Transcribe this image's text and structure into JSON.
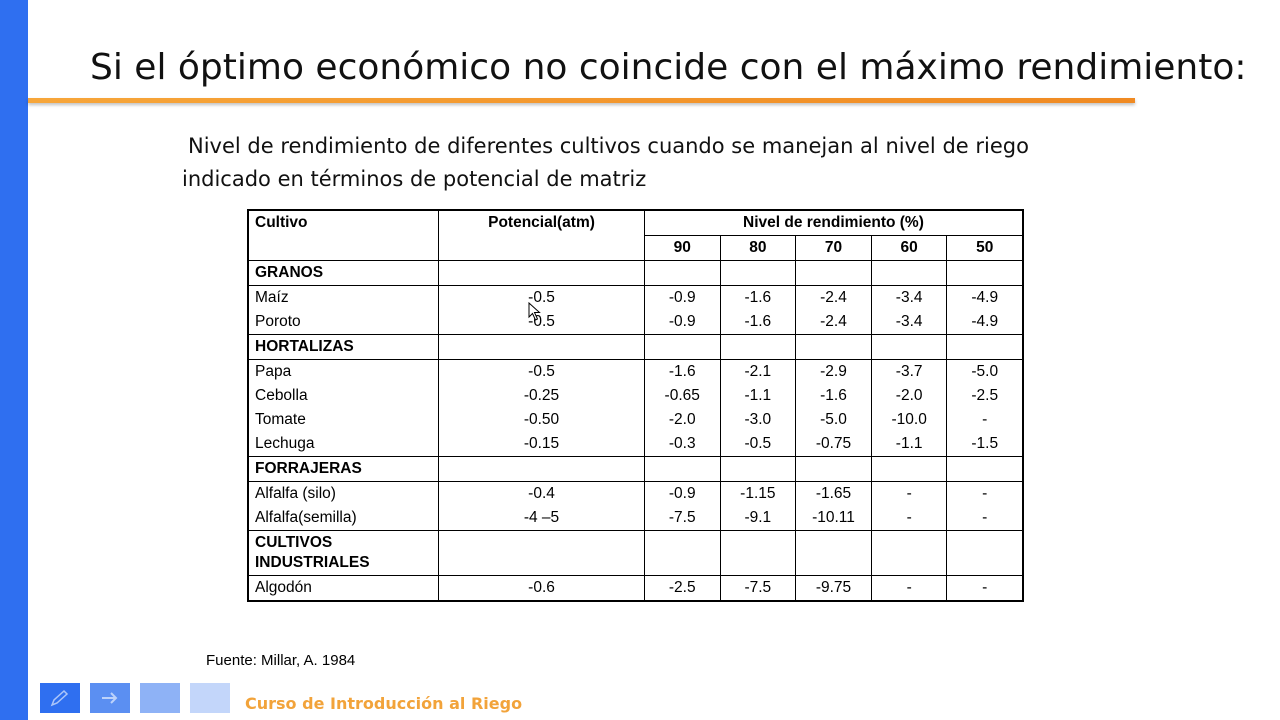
{
  "slide": {
    "title": "Si el óptimo económico no coincide con el máximo rendimiento:",
    "subtitle_line1": "Nivel de rendimiento de diferentes cultivos cuando se manejan al nivel de riego",
    "subtitle_line2": "indicado en términos de potencial de matriz",
    "source": "Fuente: Millar, A. 1984",
    "course": "Curso de Introducción  al Riego"
  },
  "table": {
    "header": {
      "cultivo": "Cultivo",
      "potencial": "Potencial(atm)",
      "nivel": "Nivel de rendimiento (%)",
      "levels": [
        "90",
        "80",
        "70",
        "60",
        "50"
      ]
    },
    "groups": [
      {
        "name": "GRANOS",
        "rows": [
          {
            "crop": "Maíz",
            "pot": "-0.5",
            "v": [
              "-0.9",
              "-1.6",
              "-2.4",
              "-3.4",
              "-4.9"
            ]
          },
          {
            "crop": "Poroto",
            "pot": "-0.5",
            "v": [
              "-0.9",
              "-1.6",
              "-2.4",
              "-3.4",
              "-4.9"
            ]
          }
        ]
      },
      {
        "name": "HORTALIZAS",
        "rows": [
          {
            "crop": "Papa",
            "pot": "-0.5",
            "v": [
              "-1.6",
              "-2.1",
              "-2.9",
              "-3.7",
              "-5.0"
            ]
          },
          {
            "crop": "Cebolla",
            "pot": "-0.25",
            "v": [
              "-0.65",
              "-1.1",
              "-1.6",
              "-2.0",
              "-2.5"
            ]
          },
          {
            "crop": "Tomate",
            "pot": "-0.50",
            "v": [
              "-2.0",
              "-3.0",
              "-5.0",
              "-10.0",
              "-"
            ]
          },
          {
            "crop": "Lechuga",
            "pot": "-0.15",
            "v": [
              "-0.3",
              "-0.5",
              "-0.75",
              "-1.1",
              "-1.5"
            ]
          }
        ]
      },
      {
        "name": "FORRAJERAS",
        "rows": [
          {
            "crop": "Alfalfa (silo)",
            "pot": "-0.4",
            "v": [
              "-0.9",
              "-1.15",
              "-1.65",
              "-",
              "-"
            ]
          },
          {
            "crop": "Alfalfa(semilla)",
            "pot": "-4 –5",
            "v": [
              "-7.5",
              "-9.1",
              "-10.11",
              "-",
              "-"
            ]
          }
        ]
      },
      {
        "name_line1": "CULTIVOS",
        "name_line2": "INDUSTRIALES",
        "rows": [
          {
            "crop": "Algodón",
            "pot": "-0.6",
            "v": [
              "-2.5",
              "-7.5",
              "-9.75",
              "-",
              "-"
            ]
          }
        ]
      }
    ]
  },
  "colors": {
    "side_bar": "#2f6ff0",
    "title_rule": "#f08a22",
    "course_text": "#f2a33a",
    "nav_buttons": [
      "#2f6ff0",
      "#5b8ff2",
      "#8eb2f6",
      "#c3d6fa"
    ]
  },
  "icons": [
    "back-arrow-icon",
    "pen-icon",
    "menu-icon",
    "forward-arrow-icon",
    "mouse-pointer-icon"
  ]
}
